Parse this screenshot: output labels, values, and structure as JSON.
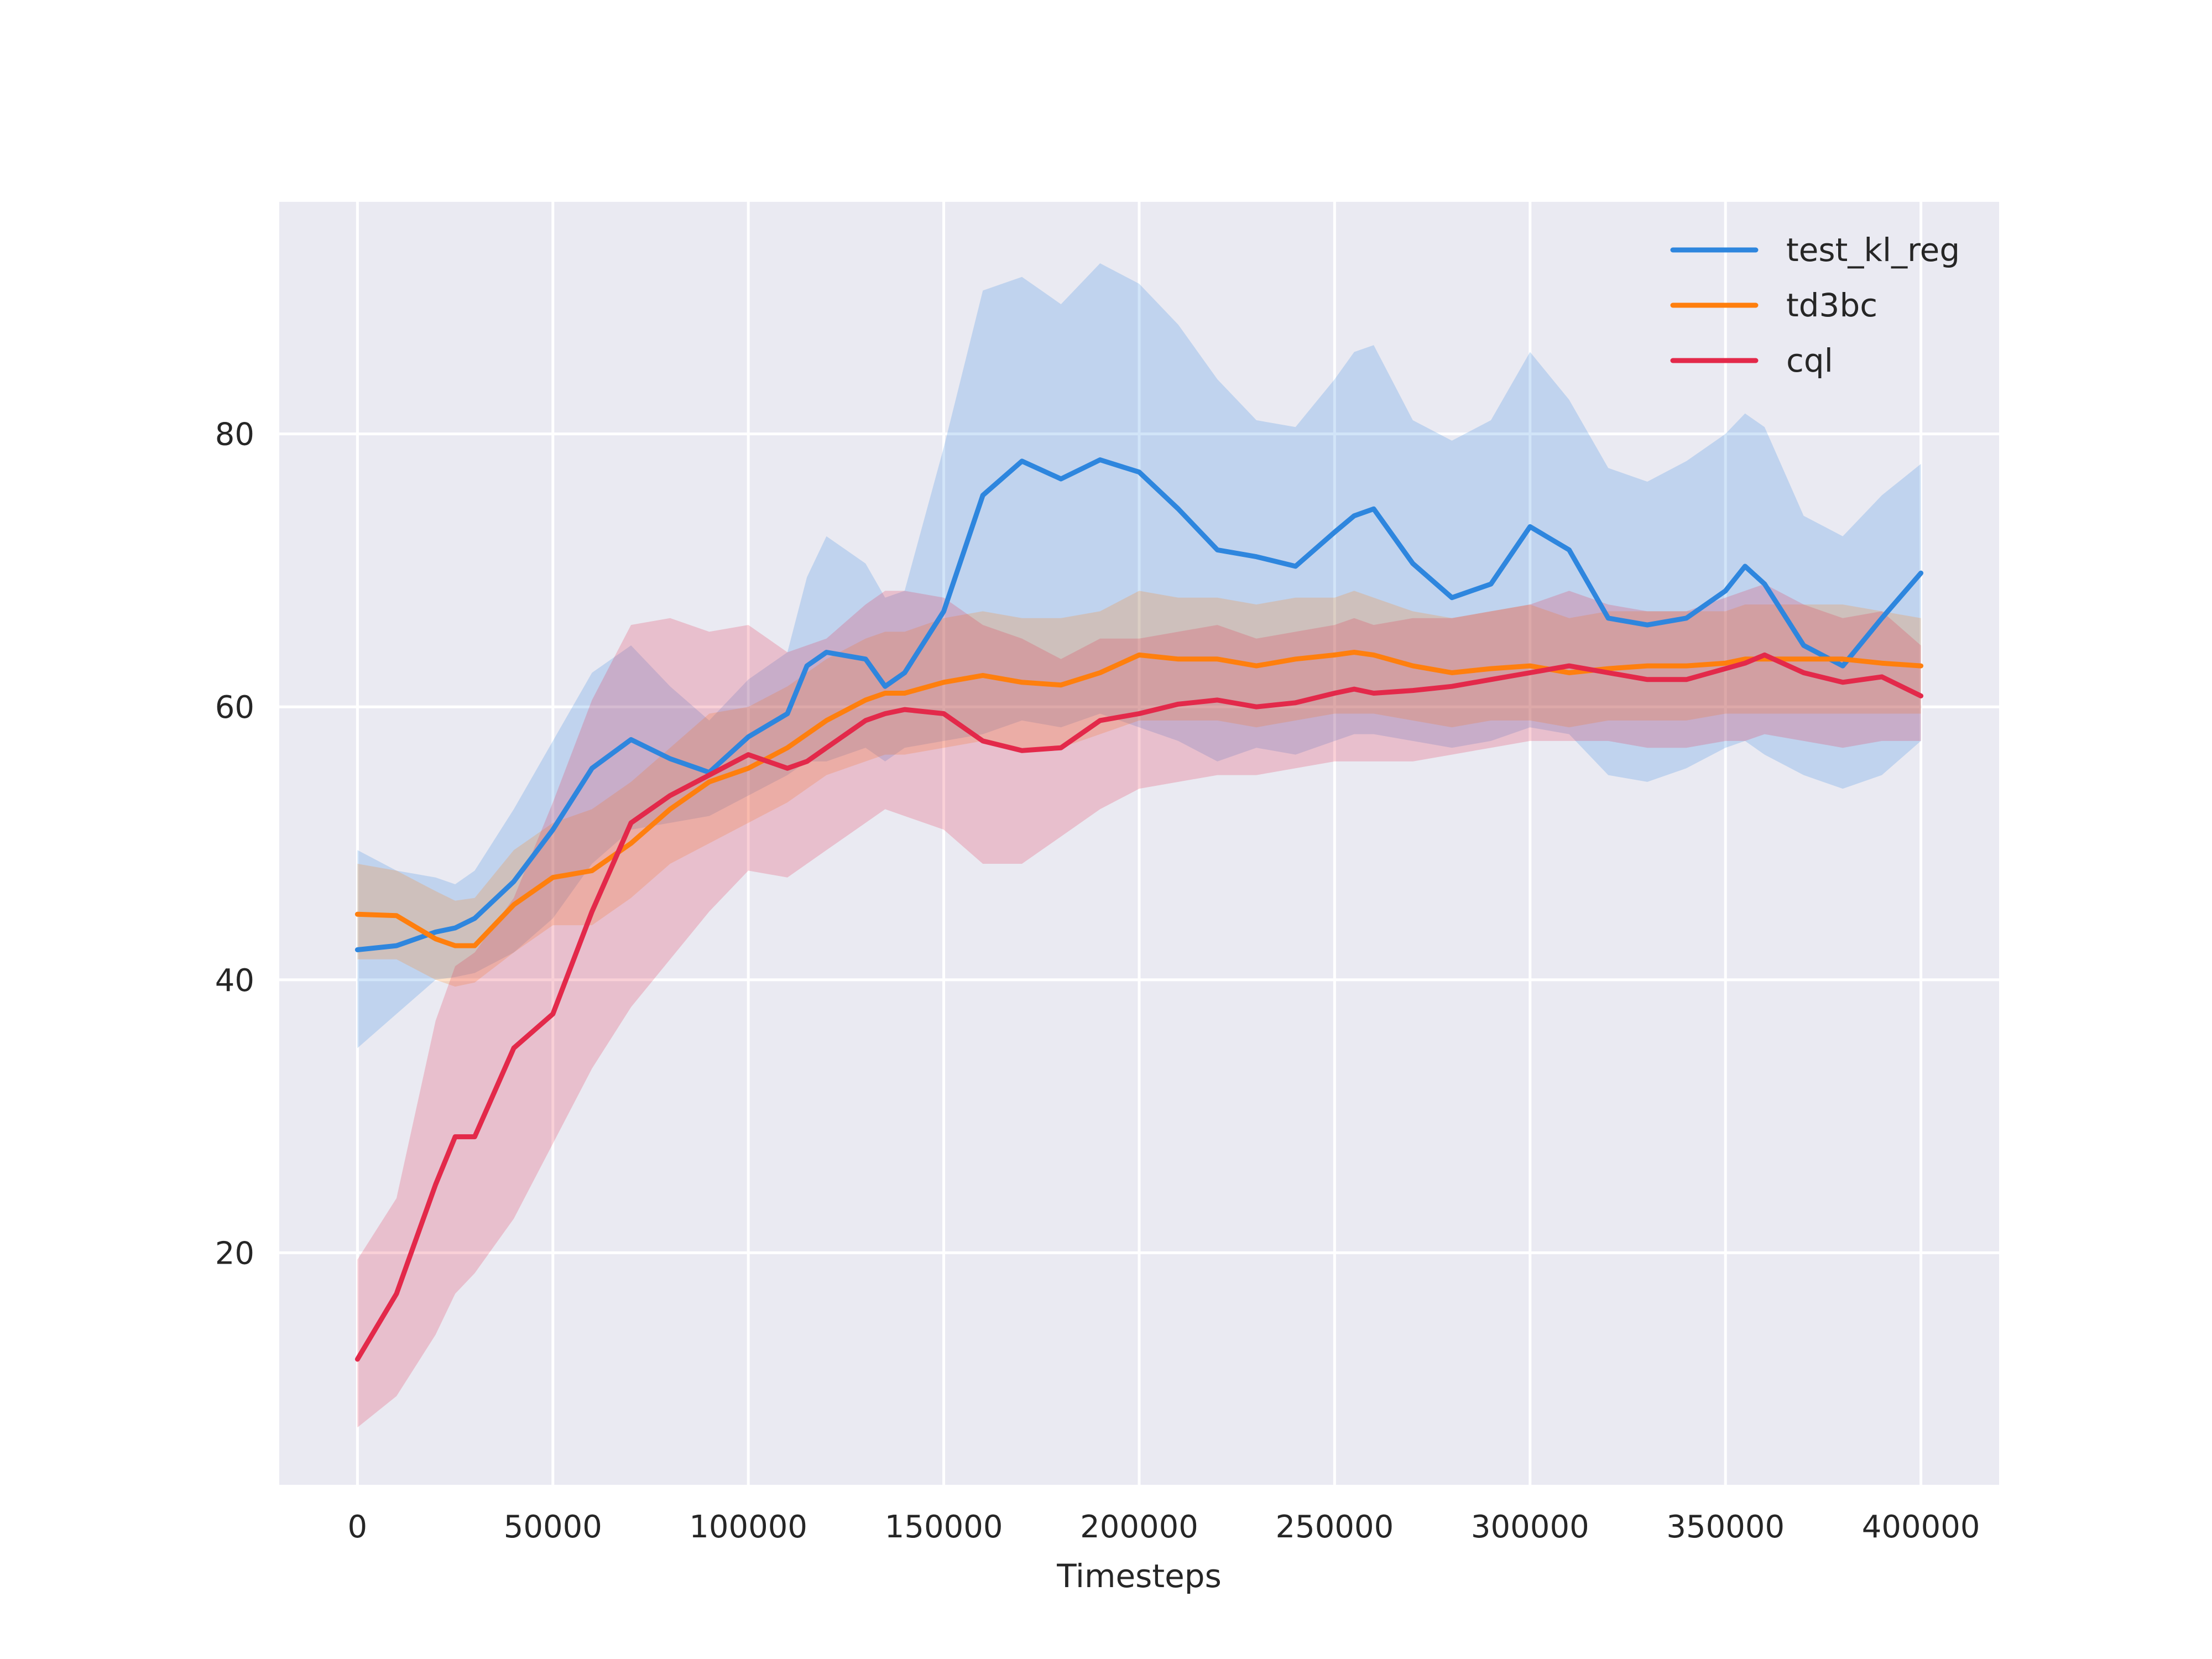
{
  "chart_data": {
    "type": "line",
    "xlabel": "Timesteps",
    "ylabel": "",
    "xlim": [
      -20000,
      420000
    ],
    "ylim": [
      3,
      97
    ],
    "xticks": [
      0,
      50000,
      100000,
      150000,
      200000,
      250000,
      300000,
      350000,
      400000
    ],
    "xtick_labels": [
      "0",
      "50000",
      "100000",
      "150000",
      "200000",
      "250000",
      "300000",
      "350000",
      "400000"
    ],
    "yticks": [
      20,
      40,
      60,
      80
    ],
    "ytick_labels": [
      "20",
      "40",
      "60",
      "80"
    ],
    "grid": true,
    "legend_position": "top-right",
    "x": [
      0,
      10000,
      20000,
      25000,
      30000,
      40000,
      50000,
      60000,
      70000,
      80000,
      90000,
      100000,
      110000,
      115000,
      120000,
      130000,
      135000,
      140000,
      150000,
      160000,
      170000,
      180000,
      190000,
      200000,
      210000,
      220000,
      230000,
      240000,
      250000,
      255000,
      260000,
      270000,
      280000,
      290000,
      300000,
      310000,
      320000,
      330000,
      340000,
      350000,
      355000,
      360000,
      370000,
      380000,
      390000,
      400000
    ],
    "series": [
      {
        "name": "test_kl_reg",
        "color": "#2e86de",
        "values": [
          42.2,
          42.5,
          43.5,
          43.8,
          44.5,
          47.2,
          51.0,
          55.5,
          57.6,
          56.2,
          55.2,
          57.8,
          59.5,
          63.0,
          64.0,
          63.5,
          61.5,
          62.5,
          67.0,
          75.5,
          78.0,
          76.7,
          78.1,
          77.2,
          74.5,
          71.5,
          71.0,
          70.3,
          72.8,
          74.0,
          74.5,
          70.5,
          68.0,
          69.0,
          73.2,
          71.5,
          66.5,
          66.0,
          66.5,
          68.5,
          70.3,
          69.0,
          64.5,
          63.0,
          66.5,
          69.8
        ],
        "lower": [
          35.0,
          37.5,
          40.0,
          40.2,
          40.5,
          42.0,
          44.5,
          48.5,
          51.0,
          51.5,
          52.0,
          53.5,
          55.0,
          56.0,
          56.0,
          57.0,
          56.0,
          57.0,
          57.5,
          58.0,
          59.0,
          58.5,
          59.5,
          58.5,
          57.5,
          56.0,
          57.0,
          56.5,
          57.5,
          58.0,
          58.0,
          57.5,
          57.0,
          57.5,
          58.5,
          58.0,
          55.0,
          54.5,
          55.5,
          57.0,
          57.5,
          56.5,
          55.0,
          54.0,
          55.0,
          57.5
        ],
        "upper": [
          49.5,
          48.0,
          47.5,
          47.0,
          48.0,
          52.5,
          57.5,
          62.5,
          64.5,
          61.5,
          59.0,
          62.0,
          64.0,
          69.5,
          72.5,
          70.5,
          68.0,
          68.5,
          79.0,
          90.5,
          91.5,
          89.5,
          92.5,
          91.0,
          88.0,
          84.0,
          81.0,
          80.5,
          84.0,
          86.0,
          86.5,
          81.0,
          79.5,
          81.0,
          86.0,
          82.5,
          77.5,
          76.5,
          78.0,
          80.0,
          81.5,
          80.5,
          74.0,
          72.5,
          75.5,
          77.8
        ]
      },
      {
        "name": "td3bc",
        "color": "#ff7f0e",
        "values": [
          44.8,
          44.7,
          43.0,
          42.5,
          42.5,
          45.5,
          47.5,
          48.0,
          50.0,
          52.5,
          54.5,
          55.5,
          57.0,
          58.0,
          59.0,
          60.5,
          61.0,
          61.0,
          61.8,
          62.3,
          61.8,
          61.6,
          62.5,
          63.8,
          63.5,
          63.5,
          63.0,
          63.5,
          63.8,
          64.0,
          63.8,
          63.0,
          62.5,
          62.8,
          63.0,
          62.5,
          62.8,
          63.0,
          63.0,
          63.2,
          63.5,
          63.5,
          63.5,
          63.5,
          63.2,
          63.0
        ],
        "lower": [
          41.5,
          41.5,
          40.0,
          39.5,
          39.8,
          42.0,
          44.0,
          44.0,
          46.0,
          48.5,
          50.0,
          51.5,
          53.0,
          54.0,
          55.0,
          56.0,
          56.5,
          56.5,
          57.0,
          57.5,
          57.0,
          57.0,
          58.0,
          59.0,
          59.0,
          59.0,
          58.5,
          59.0,
          59.5,
          59.5,
          59.5,
          59.0,
          58.5,
          59.0,
          59.0,
          58.5,
          59.0,
          59.0,
          59.0,
          59.5,
          59.5,
          59.5,
          59.5,
          59.5,
          59.5,
          59.5
        ],
        "upper": [
          48.5,
          48.0,
          46.5,
          45.8,
          46.0,
          49.5,
          51.5,
          52.5,
          54.5,
          57.0,
          59.5,
          60.0,
          61.5,
          62.5,
          63.5,
          65.0,
          65.5,
          65.5,
          66.5,
          67.0,
          66.5,
          66.5,
          67.0,
          68.5,
          68.0,
          68.0,
          67.5,
          68.0,
          68.0,
          68.5,
          68.0,
          67.0,
          66.5,
          67.0,
          67.5,
          66.5,
          67.0,
          67.0,
          67.0,
          67.0,
          67.5,
          67.5,
          67.5,
          67.5,
          67.0,
          66.5
        ]
      },
      {
        "name": "cql",
        "color": "#e3294a",
        "values": [
          12.2,
          17.0,
          25.0,
          28.5,
          28.5,
          35.0,
          37.5,
          45.0,
          51.5,
          53.5,
          55.0,
          56.5,
          55.5,
          56.0,
          57.0,
          59.0,
          59.5,
          59.8,
          59.5,
          57.5,
          56.8,
          57.0,
          59.0,
          59.5,
          60.2,
          60.5,
          60.0,
          60.3,
          61.0,
          61.3,
          61.0,
          61.2,
          61.5,
          62.0,
          62.5,
          63.0,
          62.5,
          62.0,
          62.0,
          62.8,
          63.2,
          63.8,
          62.5,
          61.8,
          62.2,
          60.8
        ],
        "lower": [
          7.2,
          9.5,
          14.0,
          17.0,
          18.5,
          22.5,
          28.0,
          33.5,
          38.0,
          41.5,
          45.0,
          48.0,
          47.5,
          48.5,
          49.5,
          51.5,
          52.5,
          52.0,
          51.0,
          48.5,
          48.5,
          50.5,
          52.5,
          54.0,
          54.5,
          55.0,
          55.0,
          55.5,
          56.0,
          56.0,
          56.0,
          56.0,
          56.5,
          57.0,
          57.5,
          57.5,
          57.5,
          57.0,
          57.0,
          57.5,
          57.5,
          58.0,
          57.5,
          57.0,
          57.5,
          57.5
        ],
        "upper": [
          19.5,
          24.0,
          37.0,
          41.0,
          42.0,
          46.0,
          53.0,
          60.5,
          66.0,
          66.5,
          65.5,
          66.0,
          64.0,
          64.5,
          65.0,
          67.5,
          68.5,
          68.5,
          68.0,
          66.0,
          65.0,
          63.5,
          65.0,
          65.0,
          65.5,
          66.0,
          65.0,
          65.5,
          66.0,
          66.5,
          66.0,
          66.5,
          66.5,
          67.0,
          67.5,
          68.5,
          67.5,
          67.0,
          67.0,
          68.0,
          68.5,
          69.0,
          67.5,
          66.5,
          67.0,
          64.5
        ]
      }
    ]
  }
}
